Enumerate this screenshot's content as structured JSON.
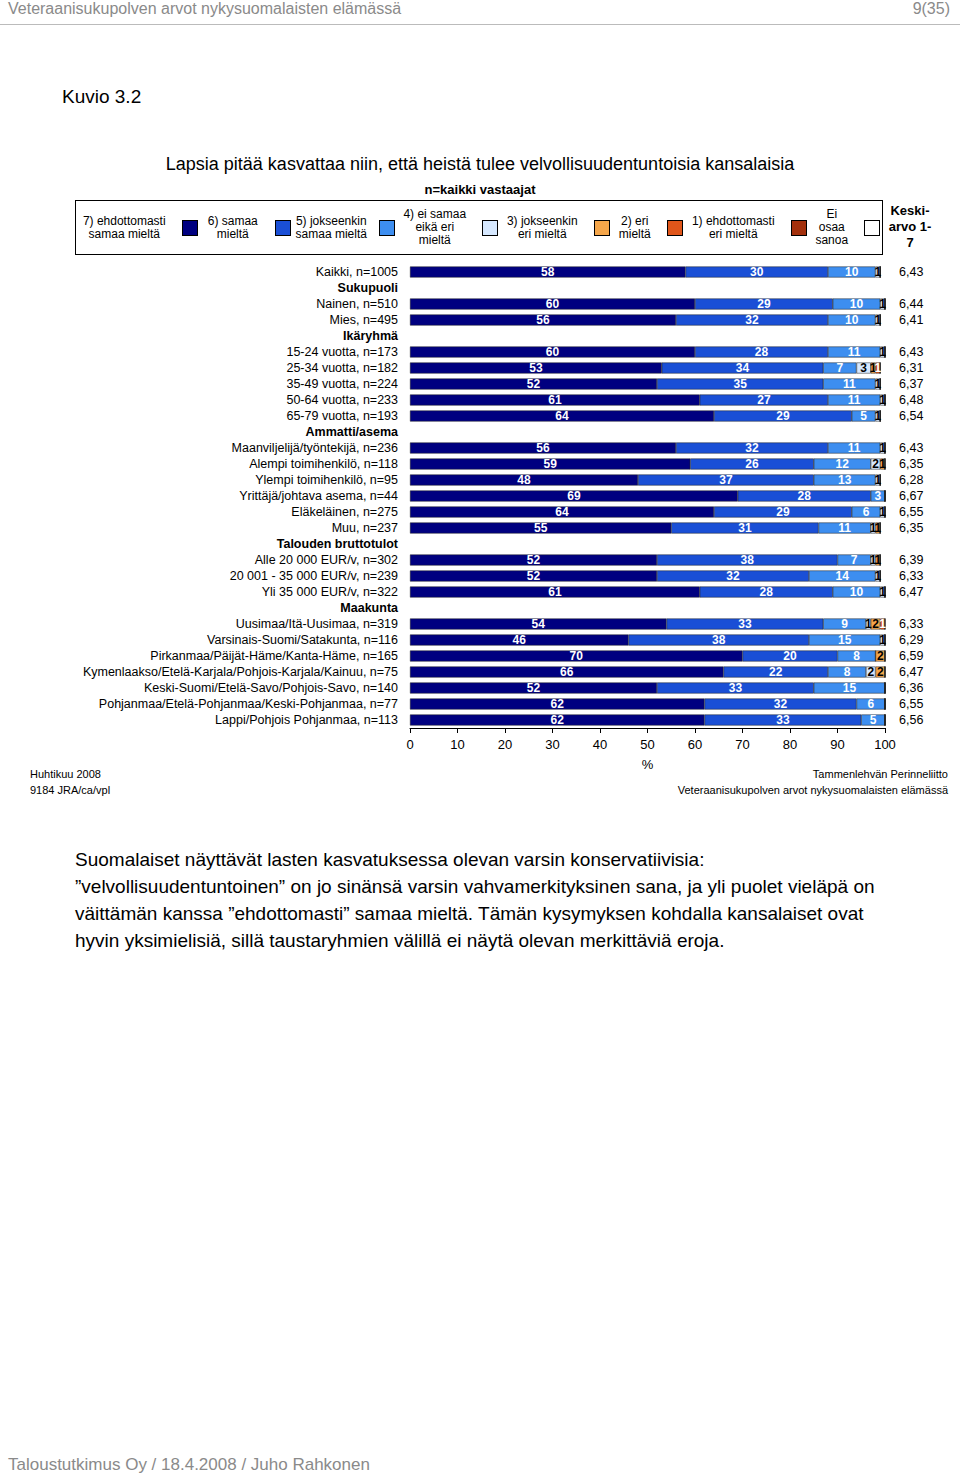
{
  "header": {
    "title": "Veteraanisukupolven arvot nykysuomalaisten elämässä",
    "page": "9(35)"
  },
  "figure_label": "Kuvio 3.2",
  "chart_data": {
    "type": "bar",
    "orientation": "horizontal",
    "stacked": true,
    "data_labels": true,
    "grid": false,
    "title": "Lapsia pitää kasvattaa niin, että heistä tulee velvollisuudentuntoisia kansalaisia",
    "subtitle": "n=kaikki vastaajat",
    "x_label": "%",
    "xlim": [
      0,
      100
    ],
    "xticks": [
      0,
      10,
      20,
      30,
      40,
      50,
      60,
      70,
      80,
      90,
      100
    ],
    "mean_title": "Keski-arvo 1-7",
    "categories": [
      "Kaikki, n=1005",
      "Sukupuoli",
      "Nainen, n=510",
      "Mies, n=495",
      "Ikäryhmä",
      "15-24 vuotta, n=173",
      "25-34 vuotta, n=182",
      "35-49 vuotta, n=224",
      "50-64 vuotta, n=233",
      "65-79 vuotta, n=193",
      "Ammatti/asema",
      "Maanviljelijä/työntekijä, n=236",
      "Alempi toimihenkilö, n=118",
      "Ylempi toimihenkilö, n=95",
      "Yrittäjä/johtava asema, n=44",
      "Eläkeläinen, n=275",
      "Muu, n=237",
      "Talouden bruttotulot",
      "Alle 20 000 EUR/v, n=302",
      "20 001 - 35 000 EUR/v, n=239",
      "Yli 35 000 EUR/v, n=322",
      "Maakunta",
      "Uusimaa/Itä-Uusimaa, n=319",
      "Varsinais-Suomi/Satakunta, n=116",
      "Pirkanmaa/Päijät-Häme/Kanta-Häme, n=165",
      "Kymenlaakso/Etelä-Karjala/Pohjois-Karjala/Kainuu, n=75",
      "Keski-Suomi/Etelä-Savo/Pohjois-Savo, n=140",
      "Pohjanmaa/Etelä-Pohjanmaa/Keski-Pohjanmaa, n=77",
      "Lappi/Pohjois Pohjanmaa, n=113"
    ],
    "series": [
      {
        "name": "7) ehdottomasti samaa mieltä",
        "color": "#000080",
        "values": [
          58,
          null,
          60,
          56,
          null,
          60,
          53,
          52,
          61,
          64,
          null,
          56,
          59,
          48,
          69,
          64,
          55,
          null,
          52,
          52,
          61,
          null,
          54,
          46,
          70,
          66,
          52,
          62,
          62
        ]
      },
      {
        "name": "6) samaa mieltä",
        "color": "#1a4fd6",
        "values": [
          30,
          null,
          29,
          32,
          null,
          28,
          34,
          35,
          27,
          29,
          null,
          32,
          26,
          37,
          28,
          29,
          31,
          null,
          38,
          32,
          28,
          null,
          33,
          38,
          20,
          22,
          33,
          32,
          33
        ]
      },
      {
        "name": "5) jokseenkin samaa mieltä",
        "color": "#3d8ef0",
        "values": [
          10,
          null,
          10,
          10,
          null,
          11,
          7,
          11,
          11,
          5,
          null,
          11,
          12,
          13,
          3,
          6,
          11,
          null,
          7,
          14,
          10,
          null,
          9,
          15,
          8,
          8,
          15,
          6,
          5
        ]
      },
      {
        "name": "4) ei samaa eikä eri mieltä",
        "color": "#d6e8ff",
        "values": [
          1,
          null,
          1,
          1,
          null,
          1,
          3,
          1,
          1,
          1,
          null,
          1,
          2,
          1,
          0,
          1,
          1,
          null,
          1,
          1,
          1,
          null,
          1,
          1,
          0,
          2,
          0,
          0,
          0
        ]
      },
      {
        "name": "3) jokseenkin eri mieltä",
        "color": "#f5a64a",
        "values": [
          0,
          null,
          0,
          0,
          null,
          0,
          1,
          0,
          0,
          0,
          null,
          0,
          1,
          0,
          0,
          0,
          1,
          null,
          1,
          0,
          0,
          null,
          2,
          0,
          2,
          2,
          0,
          0,
          0
        ]
      },
      {
        "name": "2) eri mieltä",
        "color": "#e0561a",
        "values": [
          0,
          null,
          0,
          0,
          null,
          0,
          1,
          0,
          0,
          0,
          null,
          0,
          0,
          0,
          0,
          0,
          0,
          null,
          0,
          0,
          0,
          null,
          1,
          0,
          0,
          0,
          0,
          0,
          0
        ]
      },
      {
        "name": "1) ehdottomasti eri mieltä",
        "color": "#a3300c",
        "values": [
          0,
          null,
          0,
          0,
          null,
          0,
          0,
          0,
          0,
          0,
          null,
          0,
          0,
          0,
          0,
          0,
          0,
          null,
          0,
          0,
          0,
          null,
          0,
          0,
          0,
          0,
          0,
          0,
          0
        ]
      },
      {
        "name": "Ei osaa sanoa",
        "color": "#ffffff",
        "values": [
          0,
          null,
          0,
          0,
          null,
          0,
          0,
          0,
          0,
          0,
          null,
          0,
          0,
          0,
          0,
          0,
          0,
          null,
          0,
          0,
          0,
          null,
          0,
          0,
          0,
          0,
          0,
          0,
          0
        ]
      }
    ],
    "mean_labels": [
      "6,43",
      null,
      "6,44",
      "6,41",
      null,
      "6,43",
      "6,31",
      "6,37",
      "6,48",
      "6,54",
      null,
      "6,43",
      "6,35",
      "6,28",
      "6,67",
      "6,55",
      "6,35",
      null,
      "6,39",
      "6,33",
      "6,47",
      null,
      "6,33",
      "6,29",
      "6,59",
      "6,47",
      "6,36",
      "6,55",
      "6,56"
    ]
  },
  "footnotes": {
    "left": [
      "Huhtikuu 2008",
      "9184 JRA/ca/vpl"
    ],
    "right": [
      "Tammenlehvän Perinneliitto",
      "Veteraanisukupolven arvot nykysuomalaisten elämässä"
    ]
  },
  "paragraph": "Suomalaiset näyttävät lasten kasvatuksessa olevan varsin konservatiivisia: ”velvollisuudentuntoinen” on jo sinänsä varsin vahvamerkityksinen sana, ja yli puolet vieläpä on väittämän kanssa ”ehdottomasti” samaa mieltä. Tämän kysymyksen kohdalla kansalaiset ovat hyvin yksimielisiä, sillä taustaryhmien välillä ei näytä olevan merkittäviä eroja.",
  "footer": "Taloustutkimus Oy / 18.4.2008 / Juho Rahkonen"
}
